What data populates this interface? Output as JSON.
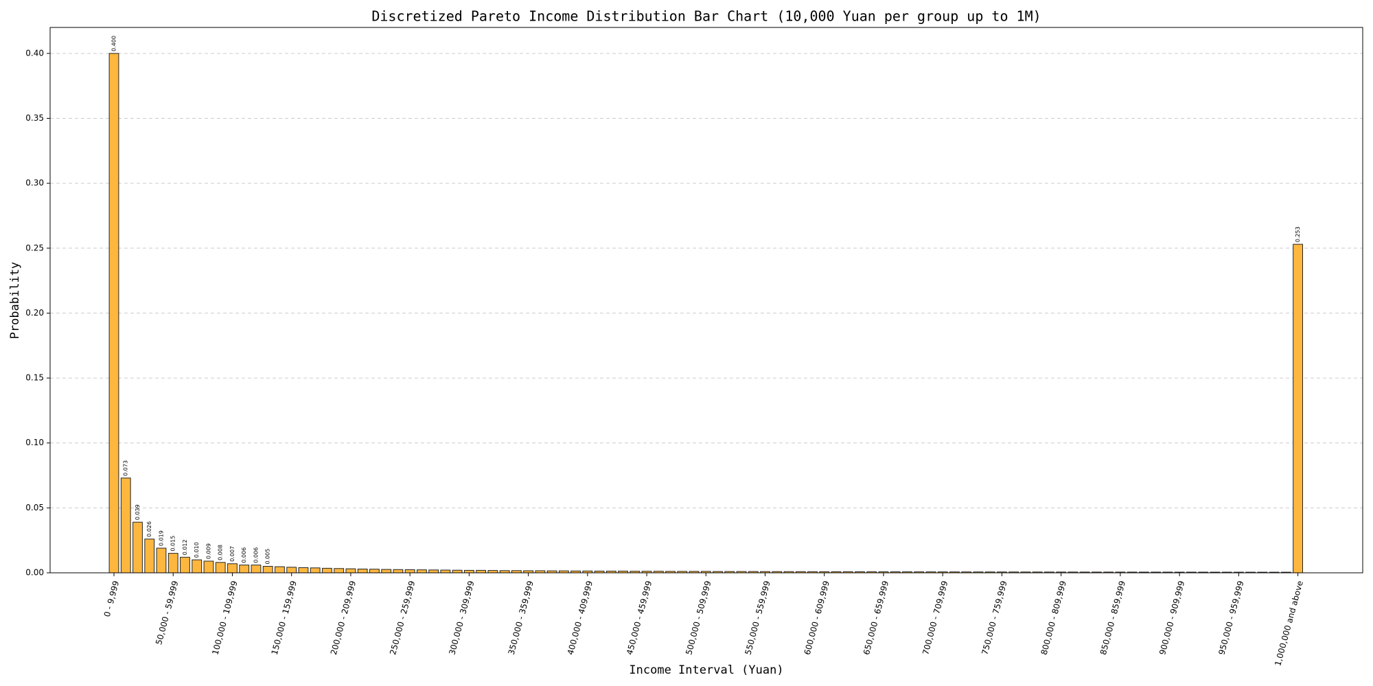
{
  "chart_data": {
    "type": "bar",
    "title": "Discretized Pareto Income Distribution Bar Chart (10,000 Yuan per group up to 1M)",
    "x_label": "Income Interval (Yuan)",
    "y_label": "Probability",
    "categories": [
      "0 - 9,999",
      null,
      null,
      null,
      null,
      "50,000 - 59,999",
      null,
      null,
      null,
      null,
      "100,000 - 109,999",
      null,
      null,
      null,
      null,
      "150,000 - 159,999",
      null,
      null,
      null,
      null,
      "200,000 - 209,999",
      null,
      null,
      null,
      null,
      "250,000 - 259,999",
      null,
      null,
      null,
      null,
      "300,000 - 309,999",
      null,
      null,
      null,
      null,
      "350,000 - 359,999",
      null,
      null,
      null,
      null,
      "400,000 - 409,999",
      null,
      null,
      null,
      null,
      "450,000 - 459,999",
      null,
      null,
      null,
      null,
      "500,000 - 509,999",
      null,
      null,
      null,
      null,
      "550,000 - 559,999",
      null,
      null,
      null,
      null,
      "600,000 - 609,999",
      null,
      null,
      null,
      null,
      "650,000 - 659,999",
      null,
      null,
      null,
      null,
      "700,000 - 709,999",
      null,
      null,
      null,
      null,
      "750,000 - 759,999",
      null,
      null,
      null,
      null,
      "800,000 - 809,999",
      null,
      null,
      null,
      null,
      "850,000 - 859,999",
      null,
      null,
      null,
      null,
      "900,000 - 909,999",
      null,
      null,
      null,
      null,
      "950,000 - 959,999",
      null,
      null,
      null,
      null,
      "1,000,000 and above"
    ],
    "values": [
      0.4,
      0.073,
      0.039,
      0.026,
      0.019,
      0.015,
      0.012,
      0.01,
      0.009,
      0.008,
      0.007,
      0.006,
      0.006,
      0.005,
      0.0047,
      0.0043,
      0.004,
      0.0038,
      0.0035,
      0.0033,
      0.0031,
      0.0029,
      0.0028,
      0.0026,
      0.0025,
      0.0024,
      0.0023,
      0.0022,
      0.0021,
      0.002,
      0.0019,
      0.0019,
      0.0018,
      0.0017,
      0.0017,
      0.0016,
      0.0016,
      0.0015,
      0.0015,
      0.0014,
      0.0014,
      0.0013,
      0.0013,
      0.0013,
      0.0012,
      0.0012,
      0.0012,
      0.0011,
      0.0011,
      0.0011,
      0.0011,
      0.001,
      0.001,
      0.001,
      0.001,
      0.00096,
      0.00094,
      0.00092,
      0.0009,
      0.00088,
      0.00086,
      0.00084,
      0.00083,
      0.00081,
      0.0008,
      0.00078,
      0.00077,
      0.00076,
      0.00074,
      0.00073,
      0.00072,
      0.00071,
      0.0007,
      0.00068,
      0.00067,
      0.00066,
      0.00065,
      0.00064,
      0.00063,
      0.00062,
      0.00061,
      0.0006,
      0.00059,
      0.00058,
      0.00058,
      0.00057,
      0.00056,
      0.00055,
      0.00055,
      0.00054,
      0.00053,
      0.00053,
      0.00052,
      0.00051,
      0.00051,
      0.0005,
      0.00049,
      0.00049,
      0.00048,
      0.00048,
      0.253
    ],
    "value_labels": [
      "0.400",
      "0.073",
      "0.039",
      "0.026",
      "0.019",
      "0.015",
      "0.012",
      "0.010",
      "0.009",
      "0.008",
      "0.007",
      "0.006",
      "0.006",
      "0.005",
      null,
      null,
      null,
      null,
      null,
      null,
      null,
      null,
      null,
      null,
      null,
      null,
      null,
      null,
      null,
      null,
      null,
      null,
      null,
      null,
      null,
      null,
      null,
      null,
      null,
      null,
      null,
      null,
      null,
      null,
      null,
      null,
      null,
      null,
      null,
      null,
      null,
      null,
      null,
      null,
      null,
      null,
      null,
      null,
      null,
      null,
      null,
      null,
      null,
      null,
      null,
      null,
      null,
      null,
      null,
      null,
      null,
      null,
      null,
      null,
      null,
      null,
      null,
      null,
      null,
      null,
      null,
      null,
      null,
      null,
      null,
      null,
      null,
      null,
      null,
      null,
      null,
      null,
      null,
      null,
      null,
      null,
      null,
      null,
      null,
      null,
      "0.253"
    ],
    "color": "#fdb73f",
    "edge_color": "#222222",
    "ylim": [
      0,
      0.42
    ],
    "yticks": [
      {
        "value": 0,
        "label": "0.00"
      },
      0.05,
      {
        "value": 0.1,
        "label": "0.10"
      },
      0.15,
      {
        "value": 0.2,
        "label": "0.20"
      },
      0.25,
      {
        "value": 0.3,
        "label": "0.30"
      },
      0.35,
      {
        "value": 0.4,
        "label": "0.40"
      }
    ],
    "grid": true
  }
}
